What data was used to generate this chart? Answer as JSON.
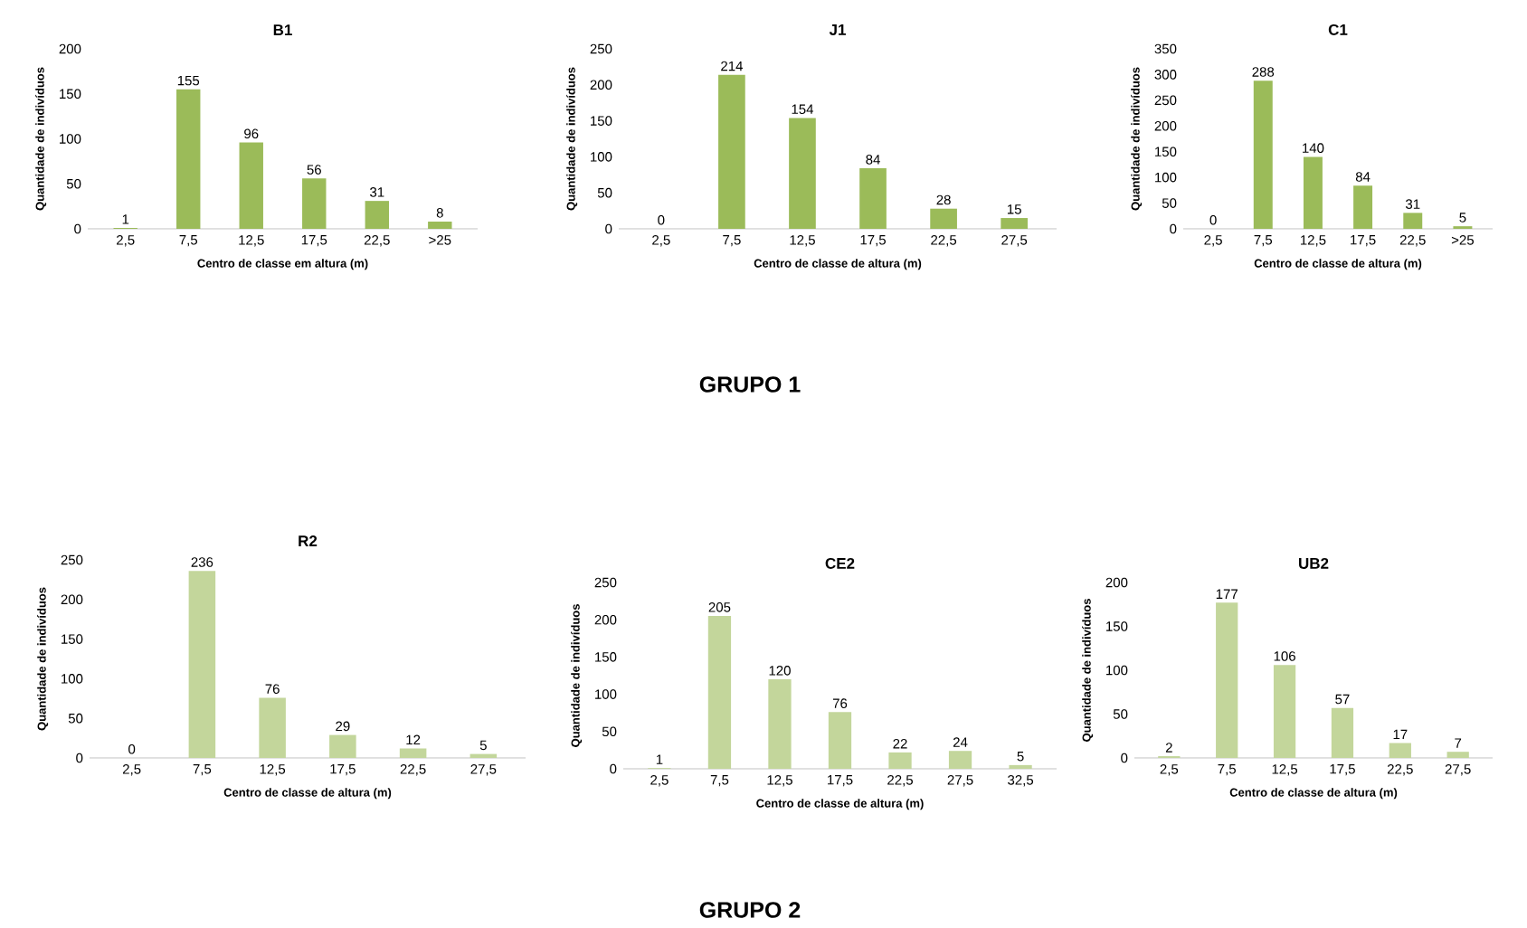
{
  "chart_data": [
    {
      "type": "bar",
      "title": "B1",
      "xlabel": "Centro de classe em altura (m)",
      "ylabel": "Quantidade de indivíduos",
      "categories": [
        "2,5",
        "7,5",
        "12,5",
        "17,5",
        "22,5",
        ">25"
      ],
      "values": [
        1,
        155,
        96,
        56,
        31,
        8
      ],
      "color": "#9bbb59",
      "ylim": [
        0,
        200
      ],
      "yticks": [
        0,
        50,
        100,
        150,
        200
      ],
      "data_labels": true
    },
    {
      "type": "bar",
      "title": "J1",
      "xlabel": "Centro de classe de altura (m)",
      "ylabel": "Quantidade de indivíduos",
      "categories": [
        "2,5",
        "7,5",
        "12,5",
        "17,5",
        "22,5",
        "27,5"
      ],
      "values": [
        0,
        214,
        154,
        84,
        28,
        15
      ],
      "color": "#9bbb59",
      "ylim": [
        0,
        250
      ],
      "yticks": [
        0,
        50,
        100,
        150,
        200,
        250
      ],
      "data_labels": true,
      "annotations": [
        "GRUPO 1"
      ]
    },
    {
      "type": "bar",
      "title": "C1",
      "xlabel": "Centro de classe de altura (m)",
      "ylabel": "Quantidade de indivíduos",
      "categories": [
        "2,5",
        "7,5",
        "12,5",
        "17,5",
        "22,5",
        ">25"
      ],
      "values": [
        0,
        288,
        140,
        84,
        31,
        5
      ],
      "color": "#9bbb59",
      "ylim": [
        0,
        350
      ],
      "yticks": [
        0,
        50,
        100,
        150,
        200,
        250,
        300,
        350
      ],
      "data_labels": true
    },
    {
      "type": "bar",
      "title": "R2",
      "xlabel": "Centro de classe de altura (m)",
      "ylabel": "Quantidade de indivíduos",
      "categories": [
        "2,5",
        "7,5",
        "12,5",
        "17,5",
        "22,5",
        "27,5"
      ],
      "values": [
        0,
        236,
        76,
        29,
        12,
        5
      ],
      "color": "#c3d69b",
      "ylim": [
        0,
        250
      ],
      "yticks": [
        0,
        50,
        100,
        150,
        200,
        250
      ],
      "data_labels": true
    },
    {
      "type": "bar",
      "title": "CE2",
      "xlabel": "Centro de classe de altura (m)",
      "ylabel": "Quantidade de indivíduos",
      "categories": [
        "2,5",
        "7,5",
        "12,5",
        "17,5",
        "22,5",
        "27,5",
        "32,5"
      ],
      "values": [
        1,
        205,
        120,
        76,
        22,
        24,
        5
      ],
      "color": "#c3d69b",
      "ylim": [
        0,
        250
      ],
      "yticks": [
        0,
        50,
        100,
        150,
        200,
        250
      ],
      "data_labels": true,
      "annotations": [
        "GRUPO 2"
      ]
    },
    {
      "type": "bar",
      "title": "UB2",
      "xlabel": "Centro de classe de altura (m)",
      "ylabel": "Quantidade de indivíduos",
      "categories": [
        "2,5",
        "7,5",
        "12,5",
        "17,5",
        "22,5",
        "27,5"
      ],
      "values": [
        2,
        177,
        106,
        57,
        17,
        7
      ],
      "color": "#c3d69b",
      "ylim": [
        0,
        200
      ],
      "yticks": [
        0,
        50,
        100,
        150,
        200
      ],
      "data_labels": true
    }
  ]
}
